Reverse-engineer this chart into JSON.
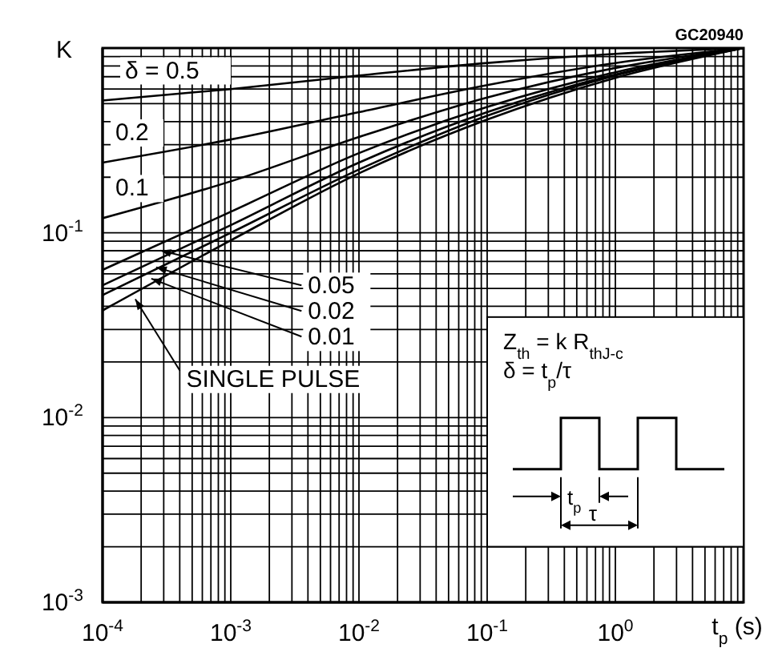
{
  "chart_data": {
    "type": "line",
    "xlabel": "t$_{p}$ (s)",
    "ylabel": "K",
    "log": "xy",
    "grid": true,
    "x": [
      0.0001,
      0.001,
      0.01,
      0.1,
      1,
      10
    ],
    "xlim": [
      0.0001,
      10
    ],
    "ylim": [
      0.001,
      1
    ],
    "xticks": [
      {
        "value": 0.0001,
        "label": "10$^{-4}$"
      },
      {
        "value": 0.001,
        "label": "10$^{-3}$"
      },
      {
        "value": 0.01,
        "label": "10$^{-2}$"
      },
      {
        "value": 0.1,
        "label": "10$^{-1}$"
      },
      {
        "value": 1,
        "label": "10$^{0}$"
      },
      {
        "value": 10,
        "label": null
      }
    ],
    "yticks": [
      {
        "value": 0.001,
        "label": "10$^{-3}$"
      },
      {
        "value": 0.01,
        "label": "10$^{-2}$"
      },
      {
        "value": 0.1,
        "label": "10$^{-1}$"
      },
      {
        "value": 1,
        "label": null
      }
    ],
    "series": [
      {
        "name": "δ = 0.5",
        "color": "#000000",
        "values": [
          0.52,
          0.6,
          0.71,
          0.83,
          0.93,
          1
        ]
      },
      {
        "name": "0.2",
        "color": "#000000",
        "values": [
          0.24,
          0.32,
          0.45,
          0.63,
          0.83,
          1
        ]
      },
      {
        "name": "0.1",
        "color": "#000000",
        "values": [
          0.12,
          0.19,
          0.33,
          0.54,
          0.78,
          1
        ]
      },
      {
        "name": "0.05",
        "color": "#000000",
        "values": [
          0.063,
          0.13,
          0.27,
          0.48,
          0.74,
          1
        ]
      },
      {
        "name": "0.02",
        "color": "#000000",
        "values": [
          0.052,
          0.11,
          0.24,
          0.45,
          0.72,
          1
        ]
      },
      {
        "name": "0.01",
        "color": "#000000",
        "values": [
          0.046,
          0.1,
          0.22,
          0.43,
          0.71,
          1
        ]
      },
      {
        "name": "SINGLE PULSE",
        "color": "#000000",
        "values": [
          0.038,
          0.091,
          0.21,
          0.41,
          0.69,
          1
        ]
      }
    ],
    "annotations": [
      "GC20940",
      "Z$_{th}$ = k R$_{thJ-c}$",
      "δ = t$_{p}$/τ",
      "t$_{p}$",
      "τ"
    ]
  }
}
